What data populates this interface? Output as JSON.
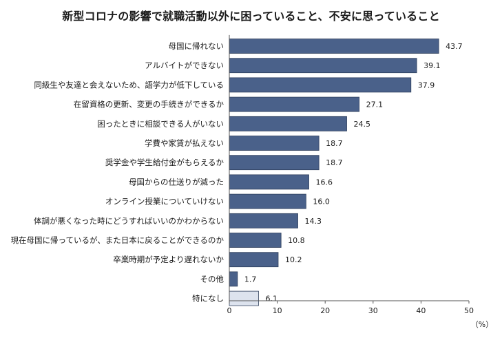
{
  "title": "新型コロナの影響で就職活動以外に困っていること、不安に思っていること",
  "colors": {
    "bar": "#4a618a",
    "bar_highlight": "#dde3ee",
    "bar_stroke": "#2f3f5c",
    "axis": "#555555"
  },
  "chart_data": {
    "type": "bar",
    "orientation": "horizontal",
    "title": "新型コロナの影響で就職活動以外に困っていること、不安に思っていること",
    "categories": [
      "母国に帰れない",
      "アルバイトができない",
      "同級生や友達と会えないため、語学力が低下している",
      "在留資格の更新、変更の手続きができるか",
      "困ったときに相談できる人がいない",
      "学費や家賃が払えない",
      "奨学金や学生給付金がもらえるか",
      "母国からの仕送りが減った",
      "オンライン授業についていけない",
      "体調が悪くなった時にどうすればいいのかわからない",
      "現在母国に帰っているが、また日本に戻ることができるのか",
      "卒業時期が予定より遅れないか",
      "その他",
      "特になし"
    ],
    "values": [
      43.7,
      39.1,
      37.9,
      27.1,
      24.5,
      18.7,
      18.7,
      16.6,
      16.0,
      14.3,
      10.8,
      10.2,
      1.7,
      6.1
    ],
    "value_labels": [
      "43.7",
      "39.1",
      "37.9",
      "27.1",
      "24.5",
      "18.7",
      "18.7",
      "16.6",
      "16.0",
      "14.3",
      "10.8",
      "10.2",
      "1.7",
      "6.1"
    ],
    "highlight_category": "特になし",
    "xlim": [
      0,
      50
    ],
    "xticks": [
      0,
      10,
      20,
      30,
      40,
      50
    ],
    "unit": "（%）",
    "grid": false,
    "legend": "none"
  }
}
